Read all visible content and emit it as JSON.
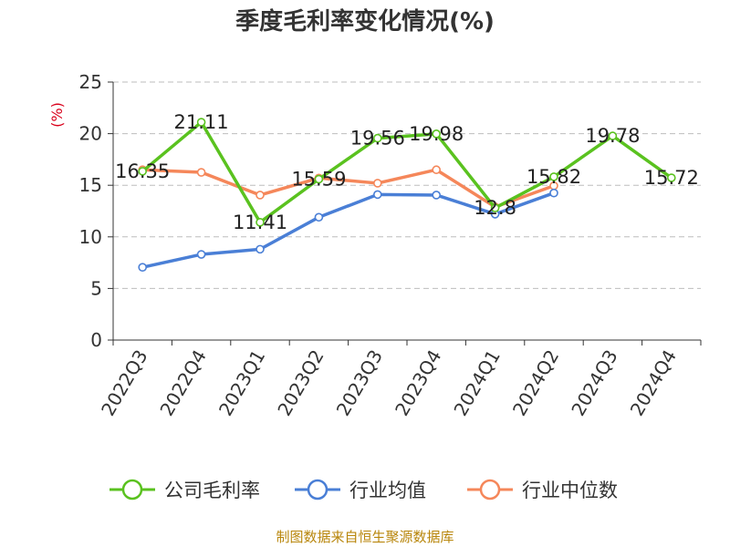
{
  "chart_data": {
    "type": "line",
    "title": "季度毛利率变化情况(%)",
    "ylabel": "(%)",
    "categories": [
      "2022Q3",
      "2022Q4",
      "2023Q1",
      "2023Q2",
      "2023Q3",
      "2023Q4",
      "2024Q1",
      "2024Q2",
      "2024Q3",
      "2024Q4"
    ],
    "ylim": [
      0,
      25
    ],
    "yticks": [
      0,
      5,
      10,
      15,
      20,
      25
    ],
    "grid": true,
    "legend_position": "bottom",
    "series": [
      {
        "name": "公司毛利率",
        "color": "#5ac21f",
        "values": [
          16.35,
          21.11,
          11.41,
          15.59,
          19.56,
          19.98,
          12.8,
          15.82,
          19.78,
          15.72
        ],
        "labels": [
          "16.35",
          "21.11",
          "11.41",
          "15.59",
          "19.56",
          "19.98",
          "12.8",
          "15.82",
          "19.78",
          "15.72"
        ]
      },
      {
        "name": "行业均值",
        "color": "#4a7fd6",
        "values": [
          7.05,
          8.3,
          8.8,
          11.9,
          14.1,
          14.05,
          12.2,
          14.25,
          null,
          null
        ]
      },
      {
        "name": "行业中位数",
        "color": "#f5875a",
        "values": [
          16.5,
          16.25,
          14.05,
          15.7,
          15.2,
          16.5,
          12.9,
          14.95,
          null,
          null
        ]
      }
    ],
    "source": "制图数据来自恒生聚源数据库"
  }
}
